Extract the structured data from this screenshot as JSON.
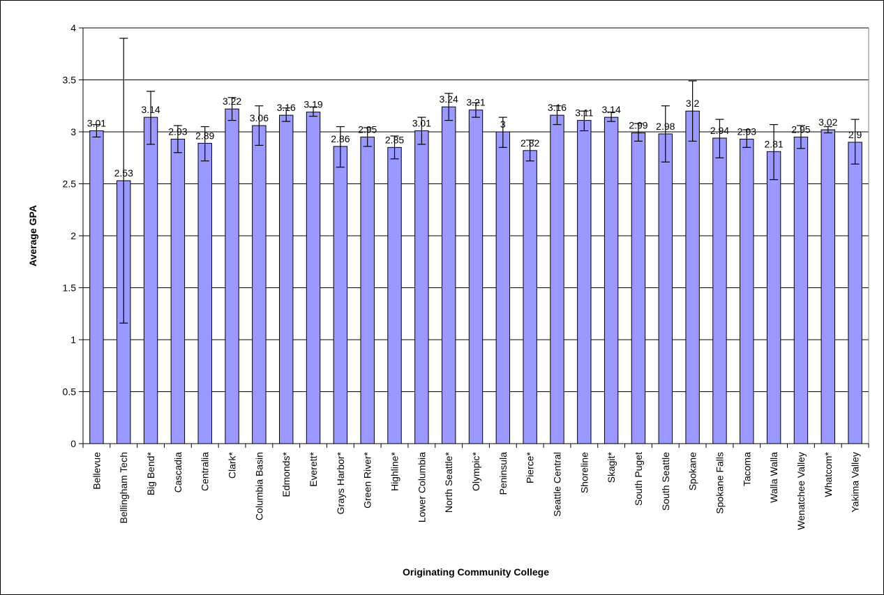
{
  "chart_data": {
    "type": "bar",
    "title": "",
    "xlabel": "Originating Community College",
    "ylabel": "Average GPA",
    "ylim": [
      0,
      4
    ],
    "yticks": [
      0,
      0.5,
      1,
      1.5,
      2,
      2.5,
      3,
      3.5,
      4
    ],
    "ytick_labels": [
      "0",
      "0.5",
      "1",
      "1.5",
      "2",
      "2.5",
      "3",
      "3.5",
      "4"
    ],
    "grid": "horizontal",
    "bar_color": "#9999ff",
    "categories": [
      "Bellevue",
      "Bellingham Tech",
      "Big Bend*",
      "Cascadia",
      "Centralia",
      "Clark*",
      "Columbia Basin",
      "Edmonds*",
      "Everett*",
      "Grays Harbor*",
      "Green River*",
      "Highline*",
      "Lower Columbia",
      "North Seattle*",
      "Olympic*",
      "Peninsula",
      "Pierce*",
      "Seattle Central",
      "Shoreline",
      "Skagit*",
      "South Puget",
      "South Seattle",
      "Spokane",
      "Spokane Falls",
      "Tacoma",
      "Walla Walla",
      "Wenatchee Valley",
      "Whatcom*",
      "Yakima Valley"
    ],
    "values": [
      3.01,
      2.53,
      3.14,
      2.93,
      2.89,
      3.22,
      3.06,
      3.16,
      3.19,
      2.86,
      2.95,
      2.85,
      3.01,
      3.24,
      3.21,
      3,
      2.82,
      3.16,
      3.11,
      3.14,
      2.99,
      2.98,
      3.2,
      2.94,
      2.93,
      2.81,
      2.95,
      3.02,
      2.9
    ],
    "data_labels": [
      "3.01",
      "2.53",
      "3.14",
      "2.93",
      "2.89",
      "3.22",
      "3.06",
      "3.16",
      "3.19",
      "2.86",
      "2.95",
      "2.85",
      "3.01",
      "3.24",
      "3.21",
      "3",
      "2.82",
      "3.16",
      "3.11",
      "3.14",
      "2.99",
      "2.98",
      "3.2",
      "2.94",
      "2.93",
      "2.81",
      "2.95",
      "3.02",
      "2.9"
    ],
    "error_low": [
      2.95,
      1.16,
      2.88,
      2.8,
      2.72,
      3.11,
      2.87,
      3.1,
      3.15,
      2.66,
      2.86,
      2.74,
      2.88,
      3.11,
      3.14,
      2.85,
      2.72,
      3.07,
      3.01,
      3.1,
      2.91,
      2.71,
      2.91,
      2.75,
      2.85,
      2.54,
      2.84,
      2.99,
      2.69
    ],
    "error_high": [
      3.07,
      3.9,
      3.39,
      3.06,
      3.05,
      3.33,
      3.25,
      3.23,
      3.24,
      3.05,
      3.04,
      2.96,
      3.14,
      3.37,
      3.28,
      3.14,
      2.92,
      3.25,
      3.2,
      3.19,
      3.08,
      3.25,
      3.49,
      3.12,
      3.02,
      3.07,
      3.06,
      3.05,
      3.12
    ]
  }
}
